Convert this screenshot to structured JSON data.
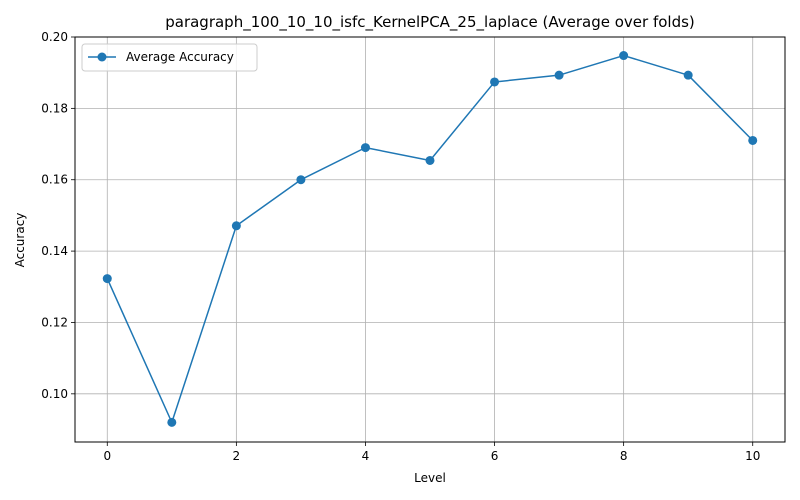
{
  "chart_data": {
    "type": "line",
    "title": "paragraph_100_10_10_isfc_KernelPCA_25_laplace (Average over folds)",
    "xlabel": "Level",
    "ylabel": "Accuracy",
    "xlim": [
      -0.5,
      10.5
    ],
    "ylim": [
      0.0865,
      0.2
    ],
    "x_ticks": [
      0,
      2,
      4,
      6,
      8,
      10
    ],
    "x_tick_labels": [
      "0",
      "2",
      "4",
      "6",
      "8",
      "10"
    ],
    "y_ticks": [
      0.1,
      0.12,
      0.14,
      0.16,
      0.18,
      0.2
    ],
    "y_tick_labels": [
      "0.10",
      "0.12",
      "0.14",
      "0.16",
      "0.18",
      "0.20"
    ],
    "grid": true,
    "legend_position": "upper-left",
    "series": [
      {
        "name": "Average Accuracy",
        "color": "#1f77b4",
        "marker": "circle",
        "x": [
          0,
          1,
          2,
          3,
          4,
          5,
          6,
          7,
          8,
          9,
          10
        ],
        "y": [
          0.1323,
          0.092,
          0.1471,
          0.16,
          0.169,
          0.1654,
          0.1874,
          0.1893,
          0.1948,
          0.1893,
          0.171
        ]
      }
    ]
  }
}
